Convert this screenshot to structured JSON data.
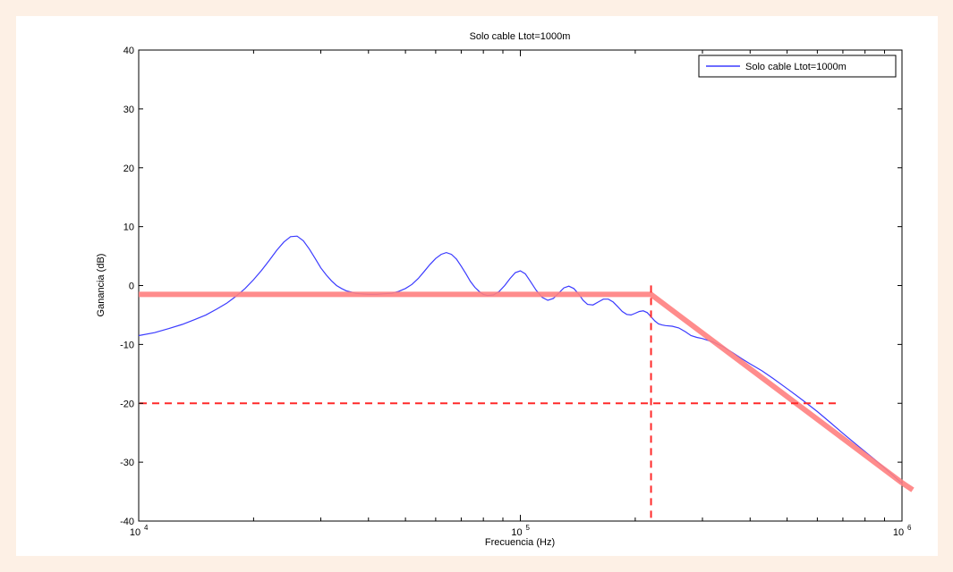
{
  "chart_data": {
    "type": "line",
    "title": "Solo cable Ltot=1000m",
    "xlabel": "Frecuencia (Hz)",
    "ylabel": "Ganancia (dB)",
    "xscale": "log",
    "xlim": [
      10000,
      1000000
    ],
    "ylim": [
      -40,
      40
    ],
    "x_ticks": [
      {
        "value": 10000,
        "base": "10",
        "exp": "4"
      },
      {
        "value": 100000,
        "base": "10",
        "exp": "5"
      },
      {
        "value": 1000000,
        "base": "10",
        "exp": "6"
      }
    ],
    "y_ticks": [
      40,
      30,
      20,
      10,
      0,
      -10,
      -20,
      -30,
      -40
    ],
    "grid": false,
    "legend": {
      "position": "top-right"
    },
    "series": [
      {
        "name": "Solo cable Ltot=1000m",
        "color": "#3b3bff",
        "x": [
          10000,
          11000,
          12000,
          13000,
          14000,
          15000,
          16000,
          17000,
          18000,
          19000,
          20000,
          21000,
          22000,
          23000,
          24000,
          25000,
          26000,
          27000,
          28000,
          29000,
          30000,
          31000,
          32000,
          33000,
          34000,
          35000,
          36000,
          37000,
          38000,
          40000,
          42000,
          44000,
          46000,
          48000,
          50000,
          52000,
          54000,
          56000,
          58000,
          60000,
          62000,
          64000,
          66000,
          68000,
          70000,
          72000,
          74000,
          76000,
          78000,
          80000,
          82000,
          85000,
          88000,
          91000,
          94000,
          97000,
          100000,
          103000,
          106000,
          110000,
          114000,
          118000,
          122000,
          126000,
          130000,
          134000,
          138000,
          142000,
          146000,
          150000,
          155000,
          160000,
          165000,
          170000,
          175000,
          180000,
          185000,
          190000,
          195000,
          200000,
          205000,
          210000,
          215000,
          220000,
          225000,
          230000,
          235000,
          240000,
          250000,
          260000,
          270000,
          280000,
          290000,
          300000,
          320000,
          340000,
          360000,
          380000,
          400000,
          430000,
          460000,
          500000,
          550000,
          600000,
          650000,
          700000,
          750000,
          800000,
          850000,
          900000,
          950000,
          1000000
        ],
        "y": [
          -8.5,
          -8.0,
          -7.3,
          -6.6,
          -5.8,
          -5.0,
          -4.0,
          -3.0,
          -1.8,
          -0.5,
          1.0,
          2.6,
          4.3,
          6.0,
          7.4,
          8.3,
          8.4,
          7.6,
          6.2,
          4.6,
          3.0,
          1.8,
          0.8,
          0.0,
          -0.5,
          -0.9,
          -1.1,
          -1.3,
          -1.4,
          -1.5,
          -1.5,
          -1.4,
          -1.3,
          -1.0,
          -0.5,
          0.2,
          1.2,
          2.4,
          3.6,
          4.6,
          5.3,
          5.6,
          5.3,
          4.5,
          3.3,
          2.0,
          0.7,
          -0.3,
          -1.0,
          -1.5,
          -1.7,
          -1.6,
          -1.0,
          0.0,
          1.2,
          2.2,
          2.5,
          2.0,
          0.8,
          -0.8,
          -2.0,
          -2.5,
          -2.2,
          -1.3,
          -0.4,
          -0.1,
          -0.5,
          -1.4,
          -2.5,
          -3.2,
          -3.3,
          -2.8,
          -2.3,
          -2.3,
          -2.8,
          -3.6,
          -4.4,
          -4.9,
          -5.0,
          -4.7,
          -4.4,
          -4.3,
          -4.6,
          -5.3,
          -6.0,
          -6.5,
          -6.7,
          -6.8,
          -6.9,
          -7.2,
          -7.8,
          -8.5,
          -8.8,
          -9.0,
          -9.6,
          -10.4,
          -11.4,
          -12.4,
          -13.3,
          -14.5,
          -15.8,
          -17.5,
          -19.5,
          -21.4,
          -23.3,
          -25.1,
          -26.7,
          -28.2,
          -29.6,
          -31.0,
          -32.3,
          -33.6
        ]
      }
    ],
    "annotations": {
      "asymptote_color": "#ff7f7f",
      "asymptote_points": [
        [
          10000,
          -1.5
        ],
        [
          220000,
          -1.5
        ],
        [
          1000000,
          -33.5
        ]
      ],
      "corner_freq": 220000,
      "dashed_color": "#ff2a2a",
      "dashed_level": -20,
      "dashed_x_end": 680000
    }
  }
}
